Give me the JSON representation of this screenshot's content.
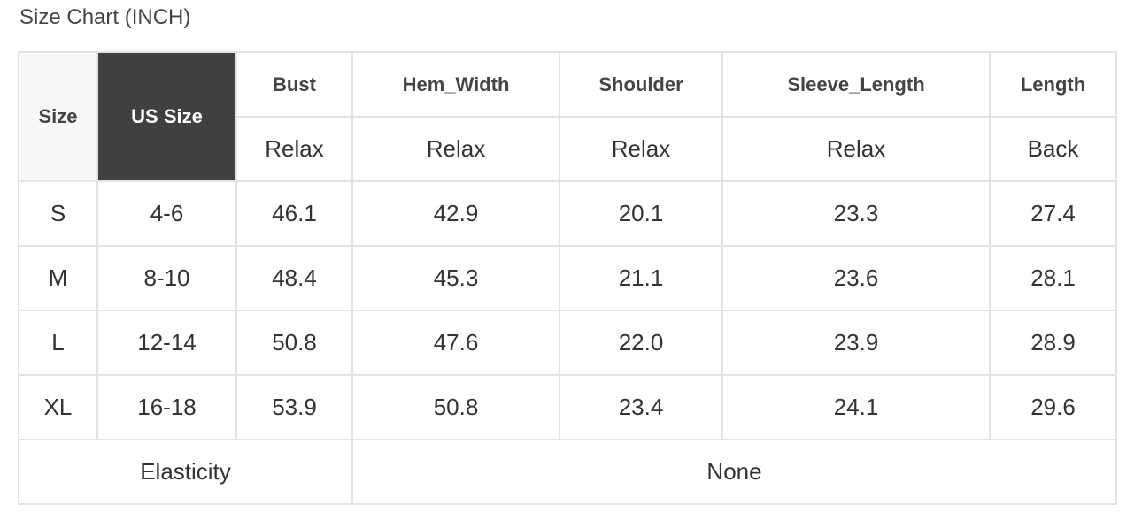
{
  "title": "Size Chart (INCH)",
  "table": {
    "header": {
      "size": "Size",
      "us_size": "US Size",
      "columns": [
        {
          "name": "Bust",
          "sub": "Relax"
        },
        {
          "name": "Hem_Width",
          "sub": "Relax"
        },
        {
          "name": "Shoulder",
          "sub": "Relax"
        },
        {
          "name": "Sleeve_Length",
          "sub": "Relax"
        },
        {
          "name": "Length",
          "sub": "Back"
        }
      ]
    },
    "rows": [
      [
        "S",
        "4-6",
        "46.1",
        "42.9",
        "20.1",
        "23.3",
        "27.4"
      ],
      [
        "M",
        "8-10",
        "48.4",
        "45.3",
        "21.1",
        "23.6",
        "28.1"
      ],
      [
        "L",
        "12-14",
        "50.8",
        "47.6",
        "22.0",
        "23.9",
        "28.9"
      ],
      [
        "XL",
        "16-18",
        "53.9",
        "50.8",
        "23.4",
        "24.1",
        "29.6"
      ]
    ],
    "footer": {
      "label": "Elasticity",
      "value": "None"
    }
  },
  "colors": {
    "us_size_bg": "#404040",
    "border": "#e3e3e3"
  }
}
